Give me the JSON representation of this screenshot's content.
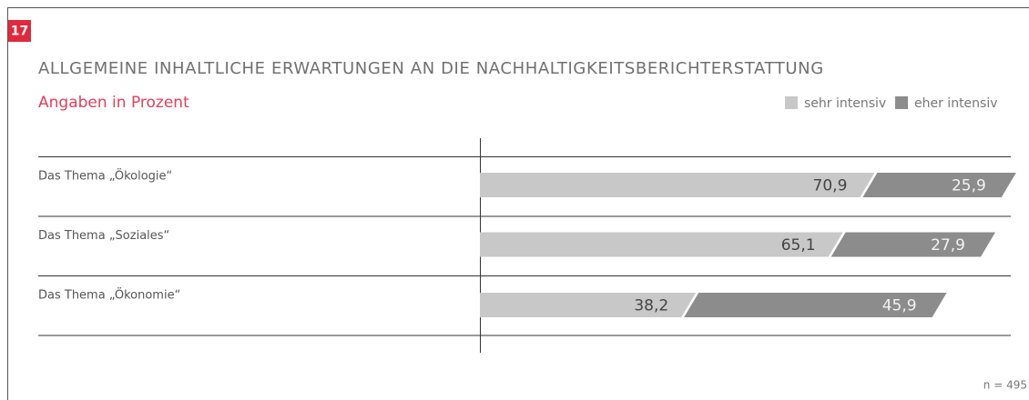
{
  "chart_data": {
    "type": "stacked_bar_horizontal",
    "badge": "17",
    "title": "ALLGEMEINE INHALTLICHE ERWARTUNGEN AN DIE NACHHALTIGKEITSBERICHTERSTATTUNG",
    "subtitle": "Angaben in Prozent",
    "note": "n = 495",
    "categories": [
      "Das Thema „Ökologie“",
      "Das Thema „Soziales“",
      "Das Thema „Ökonomie“"
    ],
    "series": [
      {
        "name": "sehr intensiv",
        "color": "#c8c8c8",
        "label_color": "#444444",
        "values": [
          70.9,
          65.1,
          38.2
        ],
        "value_labels": [
          "70,9",
          "65,1",
          "38,2"
        ]
      },
      {
        "name": "eher intensiv",
        "color": "#8c8c8c",
        "label_color": "#f2f2f2",
        "values": [
          25.9,
          27.9,
          45.9
        ],
        "value_labels": [
          "25,9",
          "27,9",
          "45,9"
        ]
      }
    ]
  }
}
